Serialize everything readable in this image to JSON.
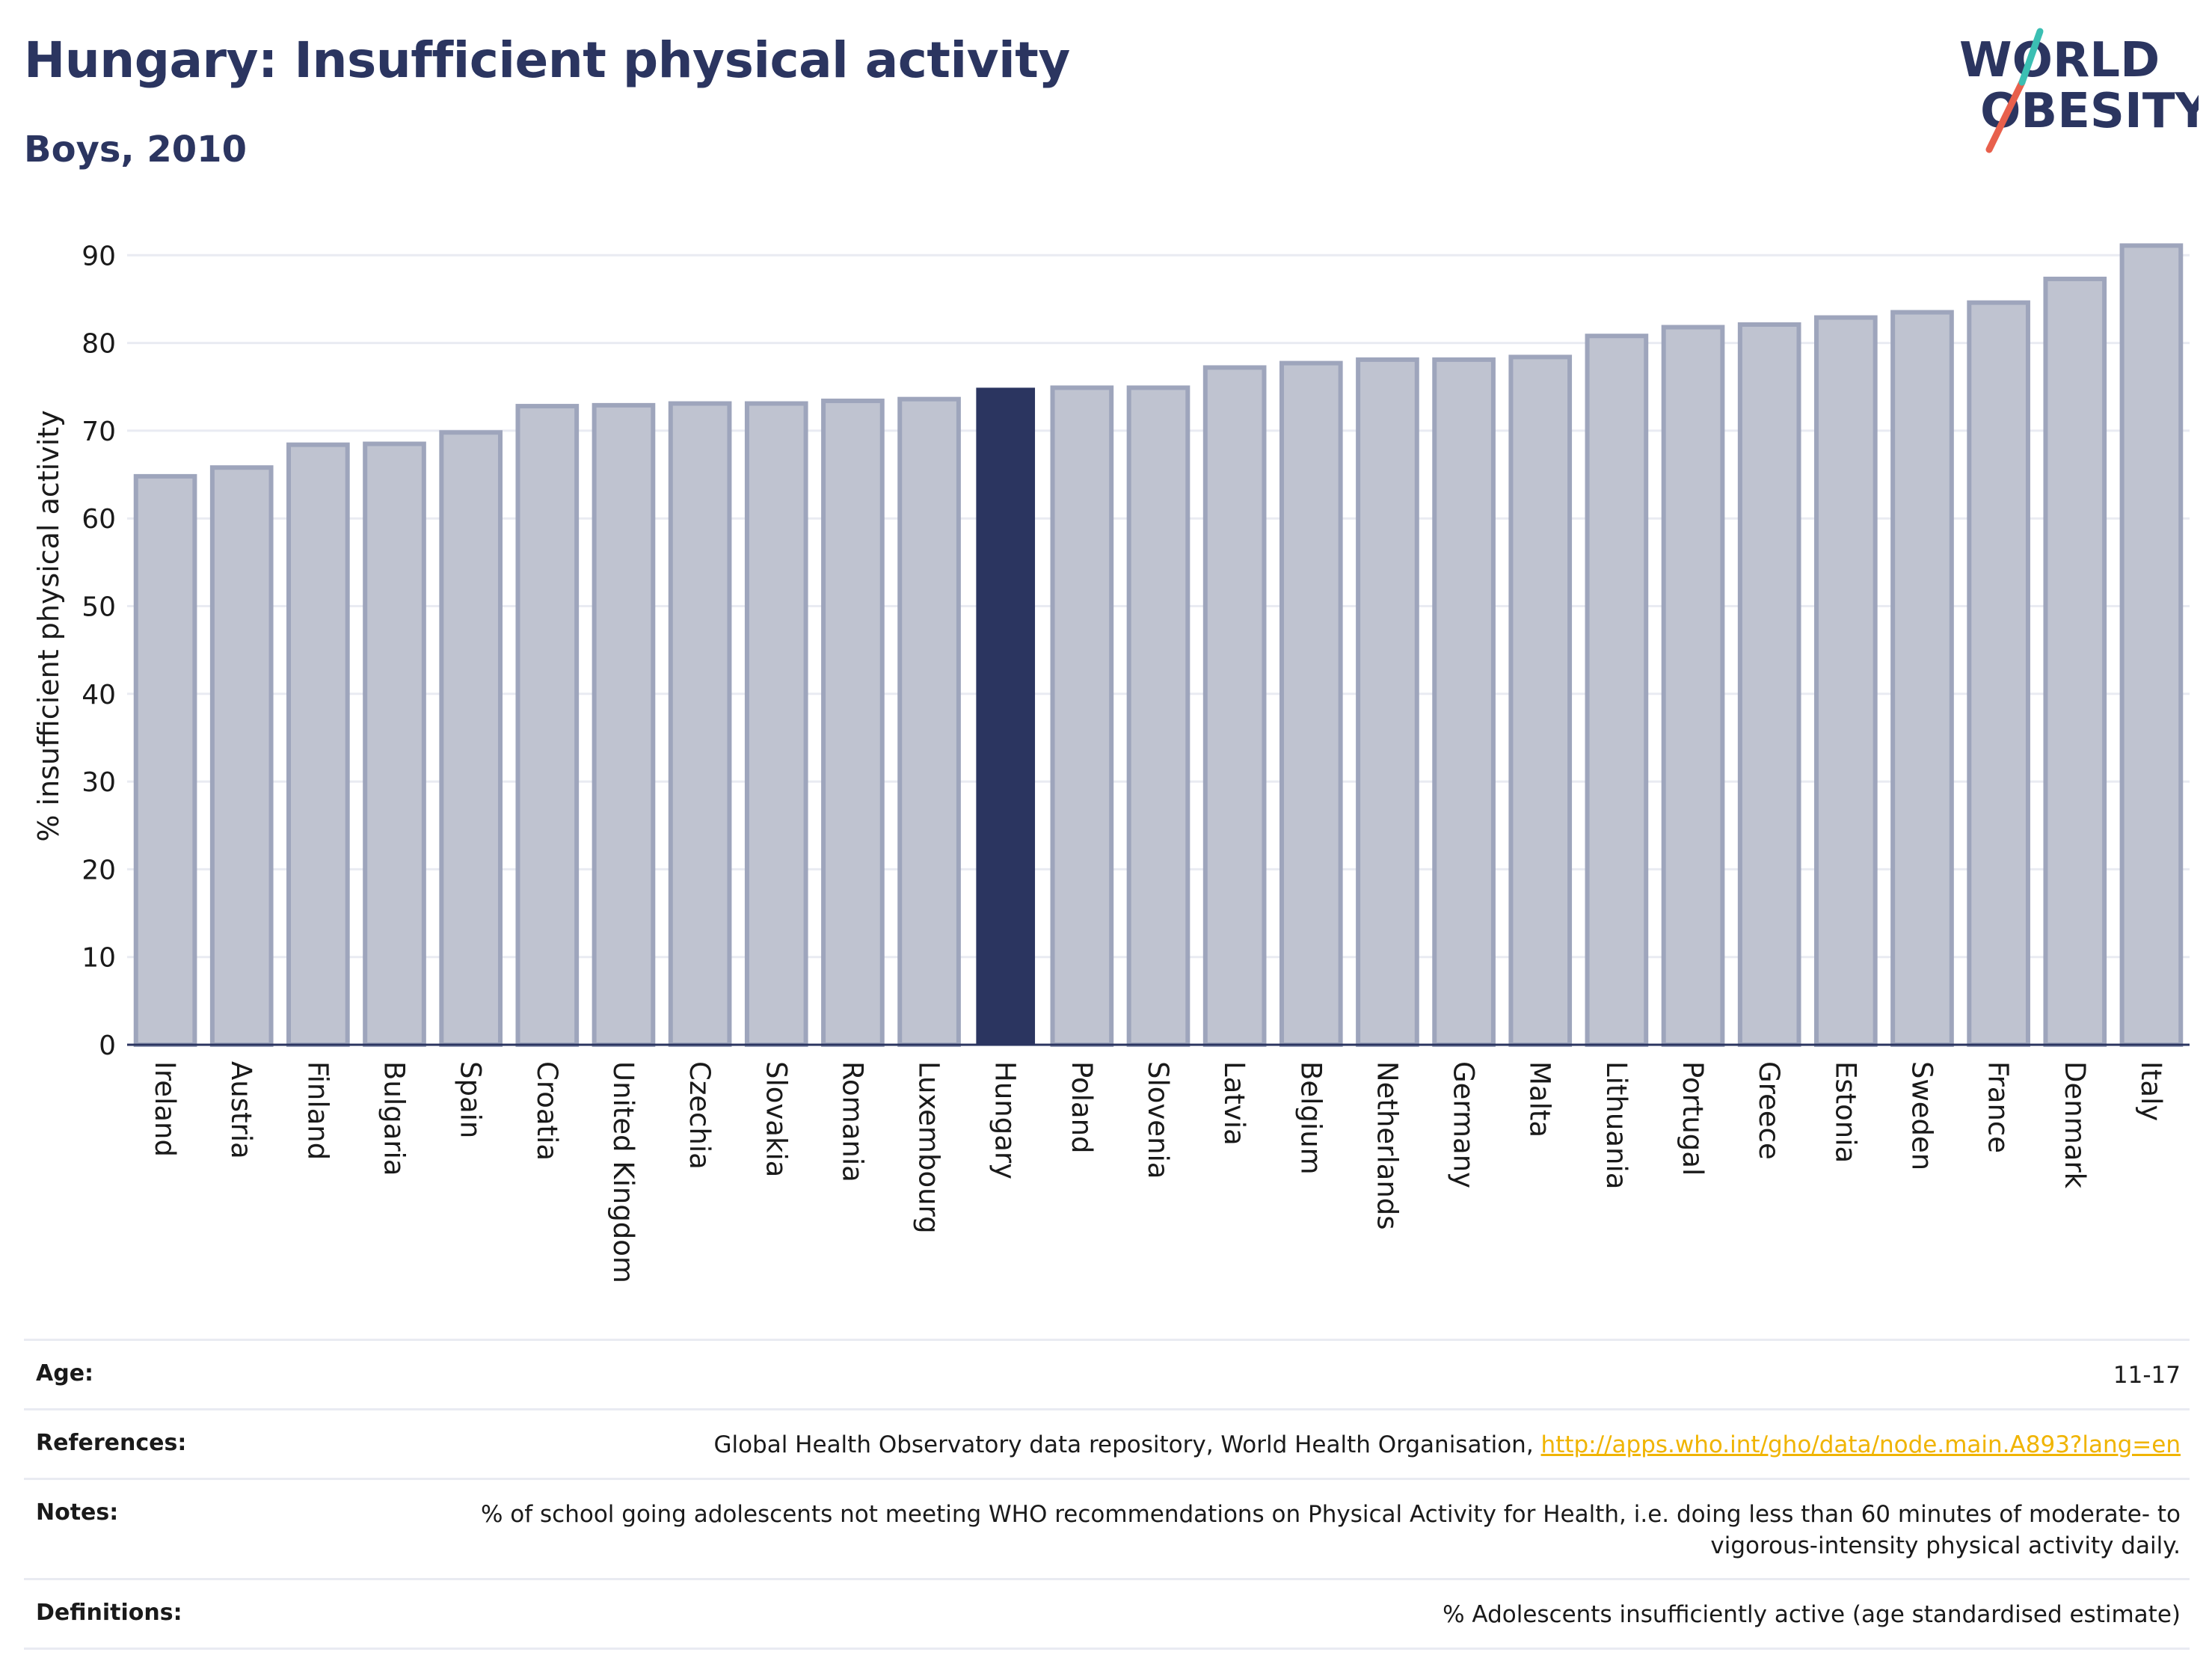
{
  "header": {
    "title": "Hungary: Insufficient physical activity",
    "subtitle": "Boys, 2010"
  },
  "logo": {
    "line1": "WORLD",
    "line2": "OBESITY",
    "colors": {
      "text": "#2b3560",
      "slash_red": "#e8604c",
      "slash_teal": "#3bbfb3"
    }
  },
  "colors": {
    "highlight": "#2b3560",
    "bar_fill": "#bfc3d0",
    "bar_stroke": "#9ea5bc",
    "grid": "#e9ebf2",
    "axis": "#2b3560"
  },
  "chart_data": {
    "type": "bar",
    "title": "Hungary: Insufficient physical activity",
    "subtitle": "Boys, 2010",
    "xlabel": "",
    "ylabel": "% insufficient physical activity",
    "ylim": [
      0,
      93
    ],
    "yticks": [
      0,
      10,
      20,
      30,
      40,
      50,
      60,
      70,
      80,
      90
    ],
    "grid": true,
    "highlight": "Hungary",
    "categories": [
      "Ireland",
      "Austria",
      "Finland",
      "Bulgaria",
      "Spain",
      "Croatia",
      "United Kingdom",
      "Czechia",
      "Slovakia",
      "Romania",
      "Luxembourg",
      "Hungary",
      "Poland",
      "Slovenia",
      "Latvia",
      "Belgium",
      "Netherlands",
      "Germany",
      "Malta",
      "Lithuania",
      "Portugal",
      "Greece",
      "Estonia",
      "Sweden",
      "France",
      "Denmark",
      "Italy"
    ],
    "values": [
      64.8,
      65.8,
      68.4,
      68.5,
      69.8,
      72.8,
      72.9,
      73.1,
      73.1,
      73.4,
      73.6,
      74.9,
      74.9,
      74.9,
      77.2,
      77.7,
      78.1,
      78.1,
      78.4,
      80.8,
      81.8,
      82.1,
      82.9,
      83.5,
      84.6,
      87.3,
      91.1
    ]
  },
  "meta": [
    {
      "label": "Age:",
      "value": "11-17",
      "link": ""
    },
    {
      "label": "References:",
      "value": "Global Health Observatory data repository, World Health Organisation,",
      "link": "http://apps.who.int/gho/data/node.main.A893?lang=en"
    },
    {
      "label": "Notes:",
      "value": "% of school going adolescents not meeting WHO recommendations on Physical Activity for Health, i.e. doing less than 60 minutes of moderate- to vigorous-intensity physical activity daily.",
      "link": ""
    },
    {
      "label": "Definitions:",
      "value": "% Adolescents insufficiently active (age standardised estimate)",
      "link": ""
    }
  ]
}
